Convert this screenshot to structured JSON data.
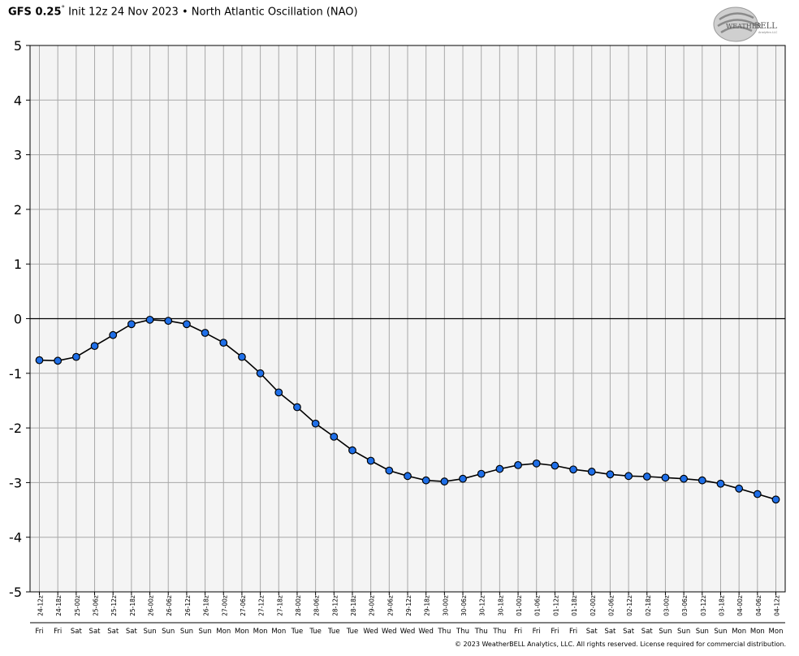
{
  "header": {
    "model": "GFS 0.25",
    "degree": "°",
    "init": "Init 12z 24 Nov 2023",
    "separator": "•",
    "field": "North Atlantic Oscillation (NAO)"
  },
  "logo": {
    "text_top": "WEATHER",
    "text_main": "BELL",
    "text_sub": "Analytics LLC"
  },
  "copyright": "© 2023 WeatherBELL Analytics, LLC. All rights reserved. License required for commercial distribution.",
  "colors": {
    "line": "#000000",
    "marker_fill": "#1f6fe8",
    "plot_bg": "#f4f4f4",
    "grid": "#a8a8a8"
  },
  "chart_data": {
    "type": "line",
    "title": "",
    "xlabel": "",
    "ylabel": "",
    "ylim": [
      -5,
      5
    ],
    "yticks": [
      "5",
      "4",
      "3",
      "2",
      "1",
      "0",
      "-1",
      "-2",
      "-3",
      "-4",
      "-5"
    ],
    "grid": true,
    "categories": [
      "24-12z",
      "24-18z",
      "25-00z",
      "25-06z",
      "25-12z",
      "25-18z",
      "26-00z",
      "26-06z",
      "26-12z",
      "26-18z",
      "27-00z",
      "27-06z",
      "27-12z",
      "27-18z",
      "28-00z",
      "28-06z",
      "28-12z",
      "28-18z",
      "29-00z",
      "29-06z",
      "29-12z",
      "29-18z",
      "30-00z",
      "30-06z",
      "30-12z",
      "30-18z",
      "01-00z",
      "01-06z",
      "01-12z",
      "01-18z",
      "02-00z",
      "02-06z",
      "02-12z",
      "02-18z",
      "03-00z",
      "03-06z",
      "03-12z",
      "03-18z",
      "04-00z",
      "04-06z",
      "04-12z"
    ],
    "days": [
      "Fri",
      "Fri",
      "Sat",
      "Sat",
      "Sat",
      "Sat",
      "Sun",
      "Sun",
      "Sun",
      "Sun",
      "Mon",
      "Mon",
      "Mon",
      "Mon",
      "Tue",
      "Tue",
      "Tue",
      "Tue",
      "Wed",
      "Wed",
      "Wed",
      "Wed",
      "Thu",
      "Thu",
      "Thu",
      "Thu",
      "Fri",
      "Fri",
      "Fri",
      "Fri",
      "Sat",
      "Sat",
      "Sat",
      "Sat",
      "Sun",
      "Sun",
      "Sun",
      "Sun",
      "Mon",
      "Mon",
      "Mon"
    ],
    "series": [
      {
        "values": [
          -0.76,
          -0.77,
          -0.7,
          -0.5,
          -0.3,
          -0.1,
          -0.02,
          -0.04,
          -0.1,
          -0.26,
          -0.44,
          -0.7,
          -1.0,
          -1.35,
          -1.62,
          -1.92,
          -2.16,
          -2.41,
          -2.6,
          -2.78,
          -2.88,
          -2.96,
          -2.98,
          -2.93,
          -2.84,
          -2.75,
          -2.68,
          -2.65,
          -2.69,
          -2.76,
          -2.8,
          -2.85,
          -2.88,
          -2.89,
          -2.91,
          -2.93,
          -2.96,
          -3.02,
          -3.11,
          -3.21,
          -3.31
        ]
      }
    ]
  }
}
